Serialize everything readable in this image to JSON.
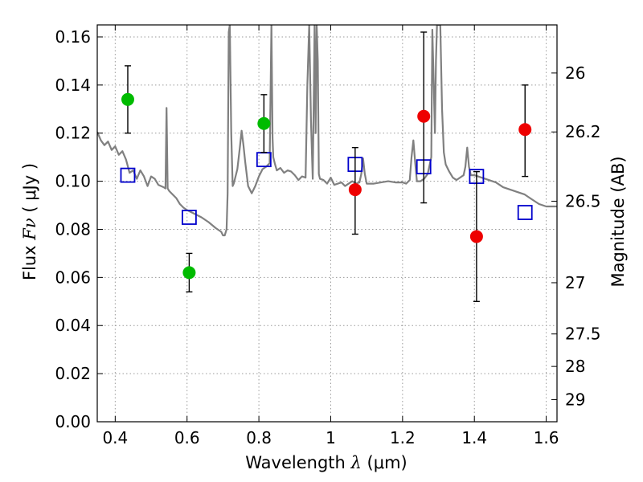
{
  "chart_data": {
    "type": "scatter",
    "xlabel": "Wavelength",
    "xlabel_symbol": "λ",
    "xlabel_unit": "(μm)",
    "ylabel": "Flux",
    "ylabel_symbol": "Fν",
    "ylabel_unit": "( μJy )",
    "y2label": "Magnitude (AB)",
    "xlim": [
      0.35,
      1.63
    ],
    "ylim": [
      0.0,
      0.165
    ],
    "grid": true,
    "x_ticks": [
      0.4,
      0.6,
      0.8,
      1.0,
      1.2,
      1.4,
      1.6
    ],
    "x_tick_labels": [
      "0.4",
      "0.6",
      "0.8",
      "1",
      "1.2",
      "1.4",
      "1.6"
    ],
    "y_ticks": [
      0.0,
      0.02,
      0.04,
      0.06,
      0.08,
      0.1,
      0.12,
      0.14,
      0.16
    ],
    "y_tick_labels": [
      "0.00",
      "0.02",
      "0.04",
      "0.06",
      "0.08",
      "0.10",
      "0.12",
      "0.14",
      "0.16"
    ],
    "y2_ticks": [
      {
        "label": "26",
        "flux": 0.145
      },
      {
        "label": "26.2",
        "flux": 0.1205
      },
      {
        "label": "26.5",
        "flux": 0.0917
      },
      {
        "label": "27",
        "flux": 0.0578
      },
      {
        "label": "27.5",
        "flux": 0.0365
      },
      {
        "label": "28",
        "flux": 0.023
      },
      {
        "label": "29",
        "flux": 0.0092
      }
    ],
    "series": [
      {
        "marker": "green-circle",
        "color": "#00bb00",
        "points": [
          {
            "x": 0.435,
            "y": 0.134,
            "err_low": 0.12,
            "err_high": 0.148
          },
          {
            "x": 0.606,
            "y": 0.062,
            "err_low": 0.054,
            "err_high": 0.07
          },
          {
            "x": 0.814,
            "y": 0.124,
            "err_low": 0.112,
            "err_high": 0.136
          }
        ]
      },
      {
        "marker": "red-circle",
        "color": "#ee0000",
        "points": [
          {
            "x": 1.068,
            "y": 0.0965,
            "err_low": 0.078,
            "err_high": 0.114
          },
          {
            "x": 1.259,
            "y": 0.127,
            "err_low": 0.091,
            "err_high": 0.162
          },
          {
            "x": 1.406,
            "y": 0.077,
            "err_low": 0.05,
            "err_high": 0.104
          },
          {
            "x": 1.541,
            "y": 0.1215,
            "err_low": 0.102,
            "err_high": 0.14
          }
        ]
      },
      {
        "marker": "blue-open-square",
        "color": "#0000cc",
        "points": [
          {
            "x": 0.435,
            "y": 0.1025
          },
          {
            "x": 0.606,
            "y": 0.085
          },
          {
            "x": 0.814,
            "y": 0.109
          },
          {
            "x": 1.068,
            "y": 0.107
          },
          {
            "x": 1.259,
            "y": 0.106
          },
          {
            "x": 1.406,
            "y": 0.102
          },
          {
            "x": 1.541,
            "y": 0.087
          }
        ]
      },
      {
        "marker": "gray-line",
        "color": "#808080",
        "points": [
          [
            0.35,
            0.1205
          ],
          [
            0.36,
            0.117
          ],
          [
            0.37,
            0.115
          ],
          [
            0.38,
            0.1165
          ],
          [
            0.39,
            0.113
          ],
          [
            0.4,
            0.1145
          ],
          [
            0.41,
            0.111
          ],
          [
            0.42,
            0.1125
          ],
          [
            0.43,
            0.109
          ],
          [
            0.44,
            0.1035
          ],
          [
            0.45,
            0.1045
          ],
          [
            0.46,
            0.101
          ],
          [
            0.47,
            0.1045
          ],
          [
            0.48,
            0.102
          ],
          [
            0.49,
            0.098
          ],
          [
            0.5,
            0.102
          ],
          [
            0.51,
            0.101
          ],
          [
            0.52,
            0.0985
          ],
          [
            0.535,
            0.0975
          ],
          [
            0.54,
            0.097
          ],
          [
            0.543,
            0.1305
          ],
          [
            0.546,
            0.097
          ],
          [
            0.55,
            0.096
          ],
          [
            0.56,
            0.0945
          ],
          [
            0.57,
            0.093
          ],
          [
            0.58,
            0.0905
          ],
          [
            0.59,
            0.089
          ],
          [
            0.6,
            0.088
          ],
          [
            0.62,
            0.0865
          ],
          [
            0.64,
            0.085
          ],
          [
            0.66,
            0.083
          ],
          [
            0.68,
            0.0805
          ],
          [
            0.695,
            0.079
          ],
          [
            0.7,
            0.0775
          ],
          [
            0.705,
            0.0775
          ],
          [
            0.71,
            0.08
          ],
          [
            0.713,
            0.095
          ],
          [
            0.716,
            0.162
          ],
          [
            0.719,
            0.165
          ],
          [
            0.723,
            0.12
          ],
          [
            0.727,
            0.098
          ],
          [
            0.73,
            0.099
          ],
          [
            0.74,
            0.105
          ],
          [
            0.747,
            0.114
          ],
          [
            0.752,
            0.121
          ],
          [
            0.757,
            0.115
          ],
          [
            0.762,
            0.108
          ],
          [
            0.77,
            0.098
          ],
          [
            0.78,
            0.095
          ],
          [
            0.79,
            0.098
          ],
          [
            0.8,
            0.102
          ],
          [
            0.81,
            0.105
          ],
          [
            0.82,
            0.106
          ],
          [
            0.83,
            0.1075
          ],
          [
            0.835,
            0.165
          ],
          [
            0.838,
            0.118
          ],
          [
            0.84,
            0.11
          ],
          [
            0.845,
            0.107
          ],
          [
            0.85,
            0.1045
          ],
          [
            0.86,
            0.1055
          ],
          [
            0.87,
            0.1035
          ],
          [
            0.88,
            0.1045
          ],
          [
            0.89,
            0.104
          ],
          [
            0.9,
            0.1025
          ],
          [
            0.91,
            0.1005
          ],
          [
            0.92,
            0.102
          ],
          [
            0.93,
            0.1015
          ],
          [
            0.935,
            0.14
          ],
          [
            0.94,
            0.165
          ],
          [
            0.945,
            0.125
          ],
          [
            0.95,
            0.101
          ],
          [
            0.953,
            0.138
          ],
          [
            0.955,
            0.165
          ],
          [
            0.958,
            0.12
          ],
          [
            0.961,
            0.165
          ],
          [
            0.964,
            0.15
          ],
          [
            0.967,
            0.103
          ],
          [
            0.97,
            0.101
          ],
          [
            0.98,
            0.1005
          ],
          [
            0.99,
            0.099
          ],
          [
            1.0,
            0.1015
          ],
          [
            1.01,
            0.0985
          ],
          [
            1.02,
            0.099
          ],
          [
            1.03,
            0.0995
          ],
          [
            1.04,
            0.098
          ],
          [
            1.05,
            0.099
          ],
          [
            1.06,
            0.1
          ],
          [
            1.07,
            0.099
          ],
          [
            1.08,
            0.0995
          ],
          [
            1.085,
            0.103
          ],
          [
            1.09,
            0.1095
          ],
          [
            1.095,
            0.103
          ],
          [
            1.1,
            0.099
          ],
          [
            1.12,
            0.099
          ],
          [
            1.14,
            0.0995
          ],
          [
            1.16,
            0.1
          ],
          [
            1.18,
            0.0995
          ],
          [
            1.2,
            0.0995
          ],
          [
            1.21,
            0.099
          ],
          [
            1.22,
            0.1005
          ],
          [
            1.225,
            0.11
          ],
          [
            1.23,
            0.117
          ],
          [
            1.235,
            0.108
          ],
          [
            1.24,
            0.1
          ],
          [
            1.25,
            0.1
          ],
          [
            1.26,
            0.101
          ],
          [
            1.27,
            0.103
          ],
          [
            1.28,
            0.11
          ],
          [
            1.283,
            0.163
          ],
          [
            1.287,
            0.14
          ],
          [
            1.29,
            0.12
          ],
          [
            1.293,
            0.15
          ],
          [
            1.296,
            0.165
          ],
          [
            1.3,
            0.165
          ],
          [
            1.305,
            0.165
          ],
          [
            1.31,
            0.13
          ],
          [
            1.315,
            0.112
          ],
          [
            1.32,
            0.107
          ],
          [
            1.33,
            0.104
          ],
          [
            1.34,
            0.1015
          ],
          [
            1.35,
            0.1005
          ],
          [
            1.36,
            0.1015
          ],
          [
            1.37,
            0.1025
          ],
          [
            1.375,
            0.106
          ],
          [
            1.38,
            0.114
          ],
          [
            1.385,
            0.106
          ],
          [
            1.39,
            0.1025
          ],
          [
            1.4,
            0.1025
          ],
          [
            1.42,
            0.1015
          ],
          [
            1.44,
            0.1005
          ],
          [
            1.46,
            0.0995
          ],
          [
            1.48,
            0.0975
          ],
          [
            1.5,
            0.0965
          ],
          [
            1.52,
            0.0955
          ],
          [
            1.54,
            0.0945
          ],
          [
            1.56,
            0.0925
          ],
          [
            1.58,
            0.0905
          ],
          [
            1.6,
            0.0895
          ],
          [
            1.62,
            0.0895
          ],
          [
            1.63,
            0.0895
          ]
        ]
      }
    ]
  }
}
